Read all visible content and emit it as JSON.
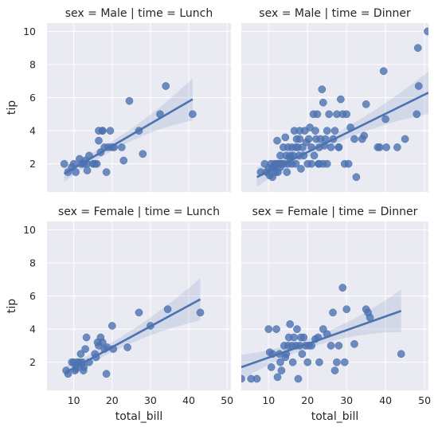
{
  "chart_data": [
    {
      "type": "scatter",
      "title": "sex = Male | time = Lunch",
      "ylabel": "tip",
      "xlabel": "",
      "xlim": [
        3,
        51
      ],
      "ylim": [
        0.3,
        10.5
      ],
      "xticks": [
        "10",
        "20",
        "30",
        "40",
        "50"
      ],
      "yticks": [
        "2",
        "4",
        "6",
        "8",
        "10"
      ],
      "show_xticks": false,
      "show_yticks": true,
      "colors": {
        "points": "#4c72b0",
        "line": "#4c72b0",
        "background": "#eaeaf2"
      },
      "x": [
        7.5,
        8.5,
        9.5,
        10.0,
        10.5,
        11.5,
        12.0,
        12.5,
        13.0,
        13.5,
        13.5,
        14.0,
        15.0,
        15.5,
        16.0,
        16.5,
        16.5,
        17.0,
        17.5,
        17.5,
        18.0,
        18.5,
        19.0,
        19.5,
        20.0,
        20.5,
        22.5,
        23.0,
        24.5,
        27.0,
        28.0,
        32.5,
        34.0,
        41.0
      ],
      "y": [
        2.0,
        1.5,
        1.8,
        2.0,
        1.5,
        2.3,
        2.0,
        2.0,
        2.2,
        1.6,
        2.0,
        2.5,
        2.0,
        2.0,
        2.0,
        4.0,
        3.4,
        2.7,
        4.0,
        4.0,
        3.0,
        1.5,
        3.0,
        4.0,
        3.0,
        3.0,
        3.0,
        2.2,
        5.8,
        4.0,
        2.6,
        5.0,
        6.7,
        5.0
      ],
      "regression": {
        "x": [
          7.5,
          41.0
        ],
        "y": [
          1.4,
          5.9
        ]
      }
    },
    {
      "type": "scatter",
      "title": "sex = Male | time = Dinner",
      "ylabel": "",
      "xlabel": "",
      "xlim": [
        3,
        51
      ],
      "ylim": [
        0.3,
        10.5
      ],
      "xticks": [
        "10",
        "20",
        "30",
        "40",
        "50"
      ],
      "yticks": [
        "2",
        "4",
        "6",
        "8",
        "10"
      ],
      "show_xticks": false,
      "show_yticks": false,
      "colors": {
        "points": "#4c72b0",
        "line": "#4c72b0",
        "background": "#eaeaf2"
      },
      "x": [
        8.0,
        9.0,
        9.5,
        10.0,
        10.3,
        10.6,
        11.0,
        11.0,
        11.3,
        11.5,
        11.9,
        12.0,
        12.2,
        12.4,
        12.5,
        13.0,
        13.0,
        13.4,
        13.8,
        13.0,
        14.0,
        14.3,
        14.5,
        14.7,
        15.0,
        15.0,
        15.3,
        15.6,
        16.0,
        16.0,
        16.3,
        16.6,
        17.0,
        17.0,
        17.2,
        17.5,
        17.8,
        18.0,
        18.0,
        18.3,
        18.7,
        19.0,
        19.3,
        19.7,
        20.0,
        20.3,
        20.6,
        21.0,
        21.0,
        21.5,
        21.7,
        22.0,
        22.2,
        22.5,
        22.8,
        23.0,
        23.0,
        23.3,
        23.7,
        24.0,
        24.0,
        24.3,
        24.6,
        25.0,
        25.0,
        25.5,
        26.0,
        26.6,
        27.0,
        27.5,
        28.0,
        28.0,
        28.5,
        29.0,
        29.5,
        30.0,
        30.5,
        31.0,
        32.0,
        32.5,
        34.0,
        34.5,
        35.0,
        38.0,
        38.5,
        39.5,
        40.0,
        40.2,
        43.0,
        45.0,
        48.0,
        48.3,
        48.5,
        50.8
      ],
      "y": [
        1.5,
        2.0,
        1.5,
        1.7,
        1.3,
        2.0,
        1.7,
        1.2,
        1.8,
        2.0,
        1.5,
        2.0,
        3.4,
        1.5,
        2.0,
        2.5,
        1.8,
        2.0,
        3.0,
        2.0,
        2.0,
        3.6,
        2.5,
        1.5,
        2.0,
        3.0,
        2.4,
        2.5,
        2.0,
        3.0,
        2.5,
        4.0,
        3.0,
        2.0,
        3.5,
        3.0,
        2.5,
        4.0,
        3.5,
        1.7,
        3.0,
        2.5,
        4.0,
        3.3,
        2.0,
        3.5,
        4.2,
        3.0,
        2.0,
        5.0,
        2.5,
        4.0,
        3.5,
        5.0,
        2.0,
        3.0,
        2.0,
        3.5,
        6.5,
        2.0,
        5.7,
        3.1,
        3.5,
        4.0,
        2.0,
        5.0,
        3.0,
        3.5,
        4.0,
        5.0,
        3.0,
        3.0,
        5.9,
        5.0,
        2.0,
        5.0,
        2.0,
        4.2,
        3.5,
        1.2,
        3.5,
        3.7,
        5.6,
        3.0,
        3.0,
        7.6,
        4.7,
        3.0,
        3.0,
        3.5,
        5.0,
        9.0,
        6.7,
        10.0
      ],
      "regression": {
        "x": [
          7.0,
          51.0
        ],
        "y": [
          1.2,
          6.3
        ]
      }
    },
    {
      "type": "scatter",
      "title": "sex = Female | time = Lunch",
      "ylabel": "tip",
      "xlabel": "total_bill",
      "xlim": [
        3,
        51
      ],
      "ylim": [
        0.3,
        10.5
      ],
      "xticks": [
        "10",
        "20",
        "30",
        "40",
        "50"
      ],
      "yticks": [
        "2",
        "4",
        "6",
        "8",
        "10"
      ],
      "show_xticks": true,
      "show_yticks": true,
      "colors": {
        "points": "#4c72b0",
        "line": "#4c72b0",
        "background": "#eaeaf2"
      },
      "x": [
        8.0,
        8.5,
        9.5,
        10.0,
        10.3,
        10.5,
        10.6,
        11.0,
        11.4,
        11.8,
        12.0,
        12.2,
        12.5,
        12.6,
        13.0,
        13.3,
        14.0,
        15.5,
        15.8,
        16.2,
        16.5,
        17.0,
        17.5,
        18.0,
        18.5,
        18.7,
        20.0,
        20.3,
        24.0,
        27.0,
        30.0,
        34.5,
        43.0
      ],
      "y": [
        1.5,
        1.3,
        2.0,
        2.0,
        1.5,
        1.8,
        1.6,
        2.0,
        2.0,
        2.5,
        1.9,
        2.0,
        1.5,
        1.7,
        2.8,
        3.5,
        2.0,
        2.5,
        2.3,
        3.2,
        3.0,
        3.5,
        3.2,
        2.8,
        1.3,
        2.9,
        4.2,
        2.8,
        2.9,
        5.0,
        4.2,
        5.2,
        5.0
      ],
      "regression": {
        "x": [
          8.0,
          43.0
        ],
        "y": [
          1.4,
          5.8
        ]
      }
    },
    {
      "type": "scatter",
      "title": "sex = Female | time = Dinner",
      "ylabel": "",
      "xlabel": "total_bill",
      "xlim": [
        3,
        51
      ],
      "ylim": [
        0.3,
        10.5
      ],
      "xticks": [
        "10",
        "20",
        "30",
        "40",
        "50"
      ],
      "yticks": [
        "2",
        "4",
        "6",
        "8",
        "10"
      ],
      "show_xticks": true,
      "show_yticks": false,
      "colors": {
        "points": "#4c72b0",
        "line": "#4c72b0",
        "background": "#eaeaf2"
      },
      "x": [
        3.0,
        5.5,
        7.0,
        10.0,
        10.3,
        10.7,
        11.0,
        12.0,
        12.3,
        12.8,
        13.0,
        13.3,
        14.0,
        14.3,
        14.5,
        15.0,
        15.2,
        15.5,
        16.0,
        16.2,
        16.5,
        17.0,
        17.3,
        17.6,
        18.0,
        18.3,
        18.6,
        19.0,
        19.5,
        20.0,
        20.3,
        21.0,
        22.0,
        22.7,
        23.0,
        24.0,
        25.0,
        26.0,
        26.5,
        27.0,
        27.5,
        28.0,
        29.0,
        29.5,
        30.0,
        32.0,
        35.0,
        35.5,
        36.0,
        44.0
      ],
      "y": [
        1.0,
        1.0,
        1.0,
        4.0,
        2.6,
        1.7,
        2.5,
        4.0,
        1.1,
        2.5,
        2.0,
        1.5,
        3.0,
        2.3,
        2.5,
        3.0,
        3.5,
        4.3,
        3.0,
        2.0,
        3.5,
        3.0,
        4.0,
        1.0,
        3.0,
        3.5,
        2.5,
        3.5,
        3.0,
        2.0,
        3.0,
        3.0,
        3.4,
        3.5,
        2.0,
        4.0,
        3.7,
        3.0,
        5.0,
        1.5,
        2.0,
        3.0,
        6.5,
        2.0,
        5.2,
        3.1,
        5.2,
        5.0,
        4.7,
        2.5
      ],
      "regression": {
        "x": [
          3.0,
          44.0
        ],
        "y": [
          1.7,
          5.1
        ]
      }
    }
  ]
}
